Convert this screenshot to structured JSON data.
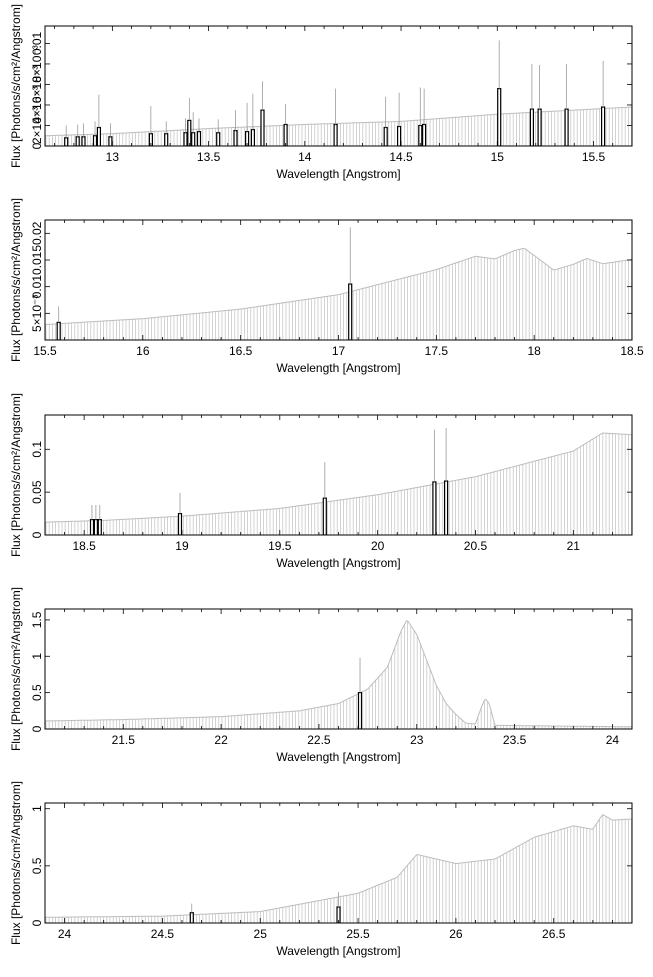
{
  "chart_data": [
    {
      "type": "bar",
      "xlabel": "Wavelength [Angstrom]",
      "ylabel": "Flux [Photons/s/cm²/Angstrom]",
      "xlim": [
        12.65,
        15.7
      ],
      "ylim": [
        0,
        0.0117
      ],
      "xticks": [
        {
          "v": 13,
          "label": "13"
        },
        {
          "v": 13.5,
          "label": "13.5"
        },
        {
          "v": 14,
          "label": "14"
        },
        {
          "v": 14.5,
          "label": "14.5"
        },
        {
          "v": 15,
          "label": "15"
        },
        {
          "v": 15.5,
          "label": "15.5"
        }
      ],
      "yticks": [
        {
          "v": 0,
          "label": "0"
        },
        {
          "v": 0.002,
          "label": "2×10⁻³"
        },
        {
          "v": 0.004,
          "label": "4×10⁻³"
        },
        {
          "v": 0.006,
          "label": "6×10⁻³"
        },
        {
          "v": 0.008,
          "label": "8×10⁻³"
        },
        {
          "v": 0.01,
          "label": "0.01"
        }
      ],
      "continuum": [
        [
          12.65,
          0.001
        ],
        [
          13.0,
          0.0012
        ],
        [
          13.5,
          0.0017
        ],
        [
          14.0,
          0.0021
        ],
        [
          14.5,
          0.0024
        ],
        [
          15.0,
          0.0031
        ],
        [
          15.7,
          0.0038
        ]
      ],
      "lines": [
        {
          "x": 12.76,
          "v": 0.0008,
          "e": 0.0012
        },
        {
          "x": 12.82,
          "v": 0.0009,
          "e": 0.0012
        },
        {
          "x": 12.85,
          "v": 0.0009,
          "e": 0.0013
        },
        {
          "x": 12.91,
          "v": 0.001,
          "e": 0.0014
        },
        {
          "x": 12.93,
          "v": 0.0018,
          "e": 0.0032
        },
        {
          "x": 12.99,
          "v": 0.0009,
          "e": 0.0013
        },
        {
          "x": 13.2,
          "v": 0.0012,
          "e": 0.0027
        },
        {
          "x": 13.28,
          "v": 0.0012,
          "e": 0.0012
        },
        {
          "x": 13.38,
          "v": 0.0013,
          "e": 0.0014
        },
        {
          "x": 13.4,
          "v": 0.0025,
          "e": 0.0022
        },
        {
          "x": 13.42,
          "v": 0.0013,
          "e": 0.002
        },
        {
          "x": 13.45,
          "v": 0.0014,
          "e": 0.0013
        },
        {
          "x": 13.55,
          "v": 0.0013,
          "e": 0.0013
        },
        {
          "x": 13.64,
          "v": 0.0015,
          "e": 0.002
        },
        {
          "x": 13.7,
          "v": 0.0014,
          "e": 0.0028
        },
        {
          "x": 13.73,
          "v": 0.0016,
          "e": 0.0035
        },
        {
          "x": 13.78,
          "v": 0.0035,
          "e": 0.0028
        },
        {
          "x": 13.9,
          "v": 0.0021,
          "e": 0.002
        },
        {
          "x": 14.16,
          "v": 0.0021,
          "e": 0.0035
        },
        {
          "x": 14.42,
          "v": 0.0018,
          "e": 0.003
        },
        {
          "x": 14.49,
          "v": 0.0019,
          "e": 0.0033
        },
        {
          "x": 14.6,
          "v": 0.002,
          "e": 0.0037
        },
        {
          "x": 14.62,
          "v": 0.0021,
          "e": 0.0035
        },
        {
          "x": 15.01,
          "v": 0.0056,
          "e": 0.0047
        },
        {
          "x": 15.18,
          "v": 0.0036,
          "e": 0.0044
        },
        {
          "x": 15.22,
          "v": 0.0036,
          "e": 0.0043
        },
        {
          "x": 15.36,
          "v": 0.0036,
          "e": 0.0044
        },
        {
          "x": 15.55,
          "v": 0.0038,
          "e": 0.0045
        }
      ]
    },
    {
      "type": "bar",
      "xlabel": "Wavelength [Angstrom]",
      "ylabel": "Flux [Photons/s/cm²/Angstrom]",
      "xlim": [
        15.5,
        18.5
      ],
      "ylim": [
        0,
        0.0225
      ],
      "xticks": [
        {
          "v": 15.5,
          "label": "15.5"
        },
        {
          "v": 16,
          "label": "16"
        },
        {
          "v": 16.5,
          "label": "16.5"
        },
        {
          "v": 17,
          "label": "17"
        },
        {
          "v": 17.5,
          "label": "17.5"
        },
        {
          "v": 18,
          "label": "18"
        },
        {
          "v": 18.5,
          "label": "18.5"
        }
      ],
      "yticks": [
        {
          "v": 0.005,
          "label": "5×10⁻³"
        },
        {
          "v": 0.01,
          "label": "0.01"
        },
        {
          "v": 0.015,
          "label": "0.015"
        },
        {
          "v": 0.02,
          "label": "0.02"
        }
      ],
      "continuum": [
        [
          15.5,
          0.0029
        ],
        [
          16.0,
          0.004
        ],
        [
          16.5,
          0.0058
        ],
        [
          17.0,
          0.0085
        ],
        [
          17.5,
          0.0132
        ],
        [
          17.7,
          0.0157
        ],
        [
          17.8,
          0.0152
        ],
        [
          17.9,
          0.0168
        ],
        [
          17.95,
          0.0172
        ],
        [
          18.05,
          0.0145
        ],
        [
          18.1,
          0.0131
        ],
        [
          18.2,
          0.0142
        ],
        [
          18.27,
          0.0153
        ],
        [
          18.35,
          0.0143
        ],
        [
          18.5,
          0.0151
        ]
      ],
      "lines": [
        {
          "x": 15.57,
          "v": 0.0033,
          "e": 0.003
        },
        {
          "x": 17.06,
          "v": 0.0105,
          "e": 0.0106
        }
      ]
    },
    {
      "type": "bar",
      "xlabel": "Wavelength [Angstrom]",
      "ylabel": "Flux [Photons/s/cm²/Angstrom]",
      "xlim": [
        18.3,
        21.3
      ],
      "ylim": [
        0,
        0.14
      ],
      "xticks": [
        {
          "v": 18.5,
          "label": "18.5"
        },
        {
          "v": 19,
          "label": "19"
        },
        {
          "v": 19.5,
          "label": "19.5"
        },
        {
          "v": 20,
          "label": "20"
        },
        {
          "v": 20.5,
          "label": "20.5"
        },
        {
          "v": 21,
          "label": "21"
        }
      ],
      "yticks": [
        {
          "v": 0,
          "label": "0"
        },
        {
          "v": 0.05,
          "label": "0.05"
        },
        {
          "v": 0.1,
          "label": "0.1"
        }
      ],
      "continuum": [
        [
          18.3,
          0.015
        ],
        [
          18.6,
          0.017
        ],
        [
          19.0,
          0.022
        ],
        [
          19.5,
          0.031
        ],
        [
          20.0,
          0.047
        ],
        [
          20.5,
          0.068
        ],
        [
          21.0,
          0.098
        ],
        [
          21.15,
          0.119
        ],
        [
          21.3,
          0.117
        ]
      ],
      "lines": [
        {
          "x": 18.54,
          "v": 0.018,
          "e": 0.017
        },
        {
          "x": 18.56,
          "v": 0.018,
          "e": 0.017
        },
        {
          "x": 18.58,
          "v": 0.018,
          "e": 0.017
        },
        {
          "x": 18.99,
          "v": 0.025,
          "e": 0.024
        },
        {
          "x": 19.73,
          "v": 0.043,
          "e": 0.042
        },
        {
          "x": 20.29,
          "v": 0.062,
          "e": 0.061
        },
        {
          "x": 20.35,
          "v": 0.063,
          "e": 0.062
        }
      ]
    },
    {
      "type": "bar",
      "xlabel": "Wavelength [Angstrom]",
      "ylabel": "Flux [Photons/s/cm²/Angstrom]",
      "xlim": [
        21.1,
        24.1
      ],
      "ylim": [
        0,
        1.65
      ],
      "xticks": [
        {
          "v": 21.5,
          "label": "21.5"
        },
        {
          "v": 22,
          "label": "22"
        },
        {
          "v": 22.5,
          "label": "22.5"
        },
        {
          "v": 23,
          "label": "23"
        },
        {
          "v": 23.5,
          "label": "23.5"
        },
        {
          "v": 24,
          "label": "24"
        }
      ],
      "yticks": [
        {
          "v": 0,
          "label": "0"
        },
        {
          "v": 0.5,
          "label": "0.5"
        },
        {
          "v": 1,
          "label": "1"
        },
        {
          "v": 1.5,
          "label": "1.5"
        }
      ],
      "continuum": [
        [
          21.1,
          0.11
        ],
        [
          21.5,
          0.13
        ],
        [
          22.0,
          0.17
        ],
        [
          22.4,
          0.25
        ],
        [
          22.6,
          0.35
        ],
        [
          22.75,
          0.55
        ],
        [
          22.85,
          0.85
        ],
        [
          22.92,
          1.35
        ],
        [
          22.95,
          1.5
        ],
        [
          23.0,
          1.3
        ],
        [
          23.05,
          0.95
        ],
        [
          23.1,
          0.6
        ],
        [
          23.15,
          0.35
        ],
        [
          23.2,
          0.2
        ],
        [
          23.25,
          0.08
        ],
        [
          23.3,
          0.07
        ],
        [
          23.33,
          0.3
        ],
        [
          23.35,
          0.42
        ],
        [
          23.37,
          0.35
        ],
        [
          23.4,
          0.05
        ],
        [
          24.1,
          0.03
        ]
      ],
      "lines": [
        {
          "x": 22.71,
          "v": 0.5,
          "e": 0.48
        }
      ]
    },
    {
      "type": "bar",
      "xlabel": "Wavelength [Angstrom]",
      "ylabel": "Flux [Photons/s/cm²/Angstrom]",
      "xlim": [
        23.9,
        26.9
      ],
      "ylim": [
        0,
        1.05
      ],
      "xticks": [
        {
          "v": 24,
          "label": "24"
        },
        {
          "v": 24.5,
          "label": "24.5"
        },
        {
          "v": 25,
          "label": "25"
        },
        {
          "v": 25.5,
          "label": "25.5"
        },
        {
          "v": 26,
          "label": "26"
        },
        {
          "v": 26.5,
          "label": "26.5"
        }
      ],
      "yticks": [
        {
          "v": 0,
          "label": "0"
        },
        {
          "v": 0.5,
          "label": "0.5"
        },
        {
          "v": 1,
          "label": "1"
        }
      ],
      "continuum": [
        [
          23.9,
          0.05
        ],
        [
          24.5,
          0.06
        ],
        [
          25.0,
          0.1
        ],
        [
          25.5,
          0.26
        ],
        [
          25.7,
          0.4
        ],
        [
          25.8,
          0.6
        ],
        [
          26.0,
          0.52
        ],
        [
          26.2,
          0.56
        ],
        [
          26.4,
          0.75
        ],
        [
          26.6,
          0.85
        ],
        [
          26.7,
          0.82
        ],
        [
          26.75,
          0.95
        ],
        [
          26.8,
          0.9
        ],
        [
          26.9,
          0.91
        ]
      ],
      "lines": [
        {
          "x": 24.65,
          "v": 0.09,
          "e": 0.08
        },
        {
          "x": 25.4,
          "v": 0.14,
          "e": 0.13
        }
      ]
    }
  ]
}
